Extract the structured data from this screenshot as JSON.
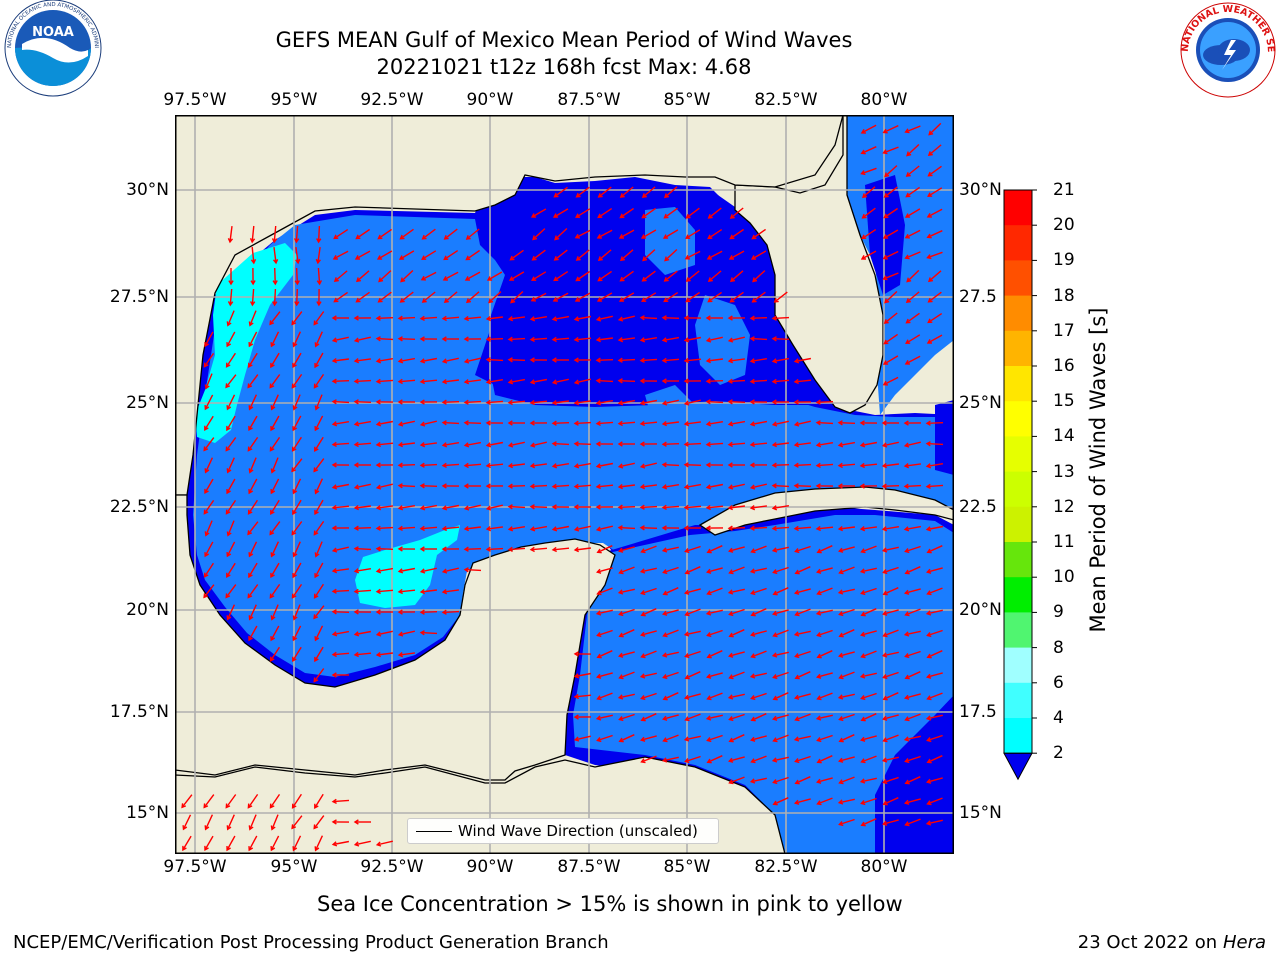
{
  "title": {
    "line1": "GEFS MEAN Gulf of Mexico Mean Period of Wind Waves",
    "line2": "20221021 t12z 168h fcst   Max: 4.68"
  },
  "logos": {
    "noaa_text": "NOAA",
    "noaa_ring_text": "NATIONAL OCEANIC AND ATMOSPHERIC ADMINISTRATION · U.S. DEPARTMENT OF COMMERCE",
    "nws_ring_text": "NATIONAL WEATHER SERVICE"
  },
  "map": {
    "lon_labels": [
      "97.5°W",
      "95°W",
      "92.5°W",
      "90°W",
      "87.5°W",
      "85°W",
      "82.5°W",
      "80°W"
    ],
    "lat_labels_left": [
      "30°N",
      "27.5°N",
      "25°N",
      "22.5°N",
      "20°N",
      "17.5°N",
      "15°N"
    ],
    "lat_labels_right": [
      "30°N",
      "27.5",
      "25°N",
      "22.5",
      "20°N",
      "17.5",
      "15°N"
    ],
    "extent": {
      "lon": [
        -98,
        -78.3
      ],
      "lat": [
        14,
        31.6
      ]
    },
    "grid": true,
    "colors": {
      "land": "#efedd9",
      "level_0_2": "#0000ee",
      "level_2_4": "#1a7dff",
      "level_4_6": "#00ffff",
      "arrow": "#ff0000",
      "coast": "#000000",
      "grid": "#b0b0b0"
    },
    "legend_label": "Wind Wave Direction (unscaled)"
  },
  "colorbar": {
    "title": "Mean Period of Wind Waves [s]",
    "tick_labels": [
      "2",
      "4",
      "6",
      "8",
      "9",
      "10",
      "11",
      "12",
      "13",
      "14",
      "15",
      "16",
      "17",
      "18",
      "19",
      "20",
      "21"
    ],
    "colors": [
      "#0000ee",
      "#1a7dff",
      "#00ffff",
      "#40ffff",
      "#a0ffff",
      "#50f570",
      "#00ee00",
      "#66e60c",
      "#ccf200",
      "#ccff00",
      "#e6ff00",
      "#ffff00",
      "#ffe600",
      "#ffb400",
      "#ff8c00",
      "#ff5000",
      "#ff2800",
      "#ff0000"
    ]
  },
  "note": "Sea Ice Concentration > 15% is shown in pink to yellow",
  "footer": {
    "left": "NCEP/EMC/Verification Post Processing Product Generation Branch",
    "right_date": "23 Oct 2022 on ",
    "right_host": "Hera"
  }
}
